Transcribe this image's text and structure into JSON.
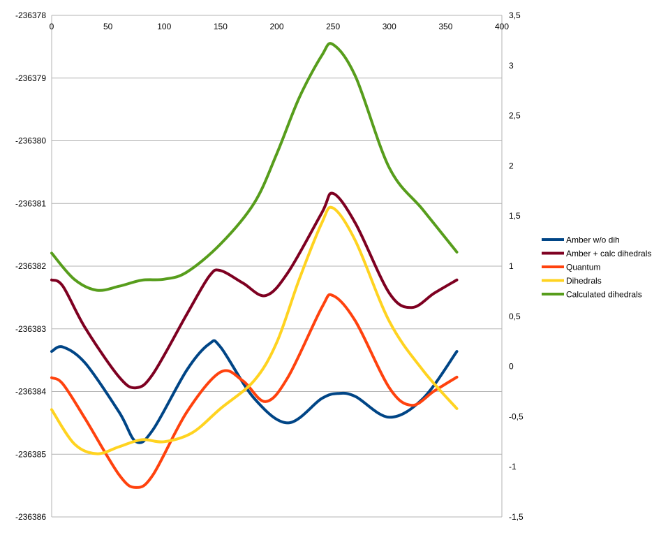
{
  "chart_data": {
    "type": "line",
    "title": "",
    "xlabel": "",
    "ylabel": "",
    "xlim": [
      0,
      400
    ],
    "x_ticks": [
      "0",
      "50",
      "100",
      "150",
      "200",
      "250",
      "300",
      "350",
      "400"
    ],
    "ylim_left": [
      -236386,
      -236378
    ],
    "y_ticks_left": [
      "-236378",
      "-236379",
      "-236380",
      "-236381",
      "-236382",
      "-236383",
      "-236384",
      "-236385",
      "-236386"
    ],
    "ylim_right": [
      -1.5,
      3.5
    ],
    "y_ticks_right": [
      "3,5",
      "3",
      "2,5",
      "2",
      "1,5",
      "1",
      "0,5",
      "0",
      "-0,5",
      "-1",
      "-1,5"
    ],
    "grid": "horizontal",
    "legend_position": "right",
    "series": [
      {
        "name": "Amber w/o dih",
        "axis": "left",
        "color": "#004586",
        "x": [
          0,
          10,
          30,
          60,
          75,
          90,
          120,
          140,
          150,
          180,
          210,
          240,
          255,
          270,
          300,
          330,
          360
        ],
        "values": [
          -236383.36,
          -236383.29,
          -236383.55,
          -236384.33,
          -236384.8,
          -236384.61,
          -236383.66,
          -236383.24,
          -236383.29,
          -236384.11,
          -236384.5,
          -236384.11,
          -236384.03,
          -236384.08,
          -236384.41,
          -236384.11,
          -236383.36
        ]
      },
      {
        "name": "Amber + calc dihedrals",
        "axis": "left",
        "color": "#7e0021",
        "x": [
          0,
          10,
          30,
          60,
          75,
          90,
          120,
          140,
          150,
          170,
          190,
          210,
          240,
          250,
          270,
          300,
          320,
          340,
          360
        ],
        "values": [
          -236382.22,
          -236382.32,
          -236382.99,
          -236383.77,
          -236383.94,
          -236383.72,
          -236382.77,
          -236382.16,
          -236382.07,
          -236382.27,
          -236382.47,
          -236382.1,
          -236381.15,
          -236380.84,
          -236381.32,
          -236382.43,
          -236382.66,
          -236382.43,
          -236382.22
        ]
      },
      {
        "name": "Quantum",
        "axis": "left",
        "color": "#ff420e",
        "x": [
          0,
          10,
          30,
          60,
          75,
          90,
          120,
          150,
          170,
          190,
          210,
          240,
          250,
          270,
          300,
          320,
          340,
          360
        ],
        "values": [
          -236383.78,
          -236383.88,
          -236384.44,
          -236385.33,
          -236385.53,
          -236385.33,
          -236384.33,
          -236383.69,
          -236383.83,
          -236384.16,
          -236383.77,
          -236382.66,
          -236382.47,
          -236382.88,
          -236383.94,
          -236384.22,
          -236383.99,
          -236383.77
        ]
      },
      {
        "name": "Dihedrals",
        "axis": "right",
        "color": "#ffd320",
        "x": [
          0,
          20,
          40,
          60,
          80,
          100,
          125,
          150,
          180,
          200,
          220,
          240,
          250,
          270,
          300,
          330,
          360
        ],
        "values": [
          -0.43,
          -0.77,
          -0.87,
          -0.8,
          -0.73,
          -0.75,
          -0.66,
          -0.42,
          -0.14,
          0.24,
          0.87,
          1.43,
          1.58,
          1.25,
          0.45,
          -0.04,
          -0.42
        ]
      },
      {
        "name": "Calculated dihedrals",
        "axis": "right",
        "color": "#579d1c",
        "x": [
          0,
          20,
          40,
          60,
          80,
          100,
          120,
          150,
          180,
          200,
          220,
          240,
          250,
          270,
          300,
          330,
          360
        ],
        "values": [
          1.13,
          0.87,
          0.76,
          0.8,
          0.86,
          0.87,
          0.94,
          1.22,
          1.63,
          2.12,
          2.68,
          3.1,
          3.21,
          2.89,
          1.98,
          1.56,
          1.14
        ]
      }
    ]
  }
}
